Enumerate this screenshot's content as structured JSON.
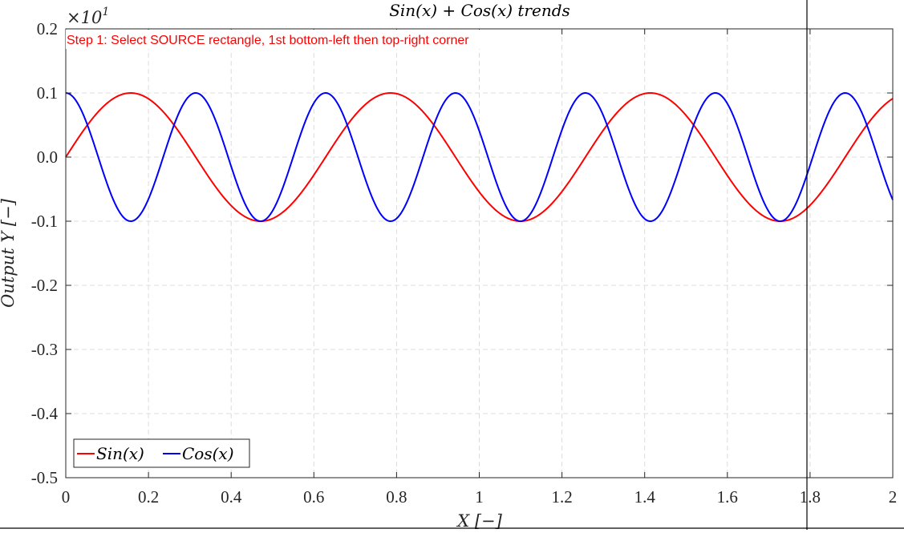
{
  "instruction": {
    "text": "Step 1: Select SOURCE rectangle, 1st bottom-left then top-right corner",
    "color": "#ff0000"
  },
  "chart_data": {
    "type": "line",
    "title": "Sin(x) + Cos(x) trends",
    "xlabel": "X [−]",
    "ylabel": "Output Y [−]",
    "y_exponent_label": "×10",
    "y_exponent_power": "1",
    "xlim": [
      0,
      2
    ],
    "ylim": [
      -0.5,
      0.2
    ],
    "x_ticks": [
      0,
      0.2,
      0.4,
      0.6,
      0.8,
      1,
      1.2,
      1.4,
      1.6,
      1.8,
      2
    ],
    "x_tick_labels": [
      "0",
      "0.2",
      "0.4",
      "0.6",
      "0.8",
      "1",
      "1.2",
      "1.4",
      "1.6",
      "1.8",
      "2"
    ],
    "y_ticks": [
      0.2,
      0.1,
      0.0,
      -0.1,
      -0.2,
      -0.3,
      -0.4,
      -0.5
    ],
    "y_tick_labels": [
      "0.2",
      "0.1",
      "0.0",
      "-0.1",
      "-0.2",
      "-0.3",
      "-0.4",
      "-0.5"
    ],
    "grid": true,
    "legend_position": "bottom-left",
    "series": [
      {
        "name": "Sin(x)",
        "color": "#ff0000",
        "function": "sin",
        "amplitude": 0.1,
        "frequency": 10
      },
      {
        "name": "Cos(x)",
        "color": "#0000ff",
        "function": "cos",
        "amplitude": 0.1,
        "frequency": 20
      }
    ]
  }
}
